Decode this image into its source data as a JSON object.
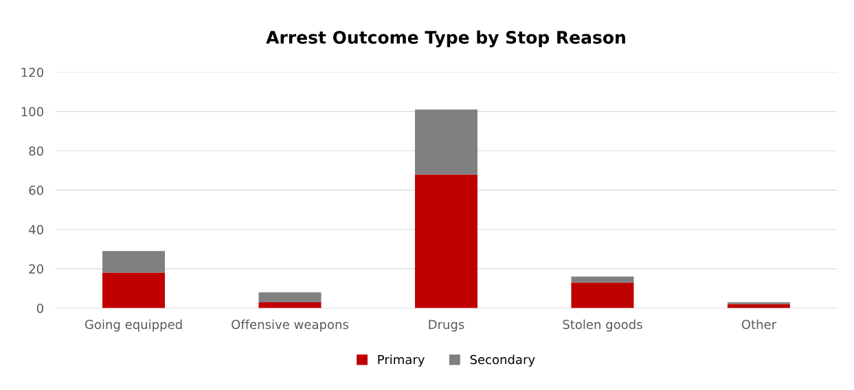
{
  "chart_data": {
    "type": "bar",
    "title": "Arrest Outcome Type by Stop Reason",
    "categories": [
      "Going equipped",
      "Offensive weapons",
      "Drugs",
      "Stolen goods",
      "Other"
    ],
    "series": [
      {
        "name": "Primary",
        "color": "#c00000",
        "values": [
          18,
          3,
          68,
          13,
          2
        ]
      },
      {
        "name": "Secondary",
        "color": "#808080",
        "values": [
          11,
          5,
          33,
          3,
          1
        ]
      }
    ],
    "stacked": true,
    "ylim": [
      0,
      120
    ],
    "yticks": [
      0,
      20,
      40,
      60,
      80,
      100,
      120
    ],
    "grid": "y",
    "legend": "bottom"
  }
}
